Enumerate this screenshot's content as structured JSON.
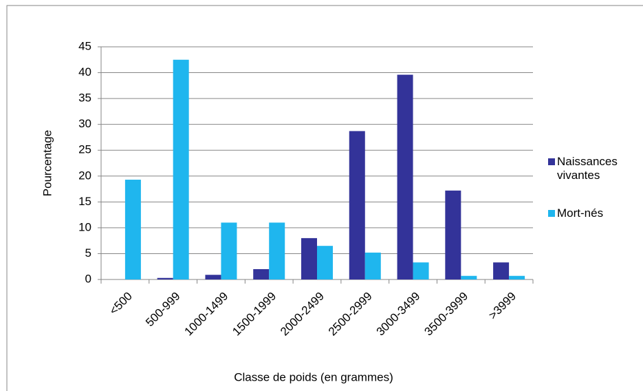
{
  "chart_data": {
    "type": "bar",
    "x_label": "Classe de poids (en grammes)",
    "y_label": "Pourcentage",
    "categories": [
      "<500",
      "500-999",
      "1000-1499",
      "1500-1999",
      "2000-2499",
      "2500-2999",
      "3000-3499",
      "3500-3999",
      ">3999"
    ],
    "series": [
      {
        "name": "Naissances vivantes",
        "color": "#333399",
        "values": [
          0,
          0.3,
          0.9,
          2.0,
          8.0,
          28.7,
          39.6,
          17.2,
          3.3
        ]
      },
      {
        "name": "Mort-nés",
        "color": "#1FB6EE",
        "values": [
          19.3,
          42.5,
          11.0,
          11.0,
          6.5,
          5.2,
          3.3,
          0.7,
          0.7
        ]
      }
    ],
    "ylim": [
      0,
      45
    ],
    "yticks": [
      0,
      5,
      10,
      15,
      20,
      25,
      30,
      35,
      40,
      45
    ],
    "grid": true,
    "legend": "right"
  }
}
